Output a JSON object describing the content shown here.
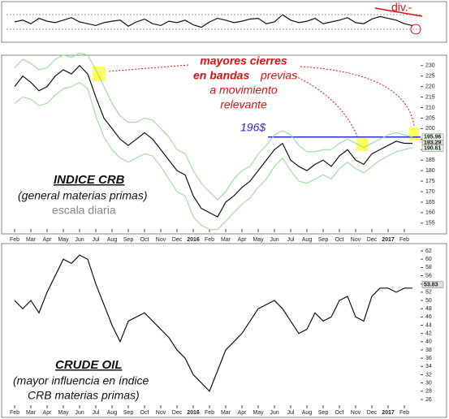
{
  "chart_data": [
    {
      "type": "line",
      "ylim": [
        0,
        100
      ],
      "x": [
        0,
        0.5,
        1,
        1.5,
        2,
        2.5,
        3,
        3.5,
        4,
        4.5,
        5,
        5.5,
        6,
        6.5,
        7,
        7.5,
        8,
        8.5,
        9,
        9.5,
        10,
        10.5,
        11,
        11.5,
        12,
        12.5,
        13,
        13.5,
        14,
        14.5,
        15,
        15.5,
        16,
        16.5,
        17,
        17.5,
        18,
        18.5,
        19,
        19.5,
        20,
        20.5,
        21,
        21.5,
        22,
        22.5,
        23,
        23.5,
        24,
        24.5
      ],
      "xlim": [
        -0.5,
        25
      ],
      "series": [
        {
          "color": "#111111",
          "values": [
            50,
            55,
            45,
            60,
            52,
            48,
            55,
            62,
            50,
            45,
            40,
            48,
            52,
            55,
            38,
            50,
            58,
            45,
            40,
            52,
            48,
            55,
            42,
            35,
            50,
            60,
            55,
            48,
            52,
            58,
            60,
            45,
            50,
            70,
            55,
            48,
            52,
            60,
            45,
            50,
            55,
            62,
            48,
            45,
            58,
            65,
            60,
            55,
            45,
            40
          ]
        }
      ],
      "annotations": [
        "div.-"
      ]
    },
    {
      "type": "line",
      "title": "INDICE CRB",
      "subtitle": "(general materias primas)",
      "note": "escala diaria",
      "annotations": [
        "mayores cierres",
        "en bandas",
        "previas",
        "a movimiento",
        "relevante"
      ],
      "level": 196,
      "level_label": "196$",
      "x": [
        0,
        0.5,
        1,
        1.5,
        2,
        2.5,
        3,
        3.5,
        4,
        4.5,
        5,
        5.5,
        6,
        6.5,
        7,
        7.5,
        8,
        8.5,
        9,
        9.5,
        10,
        10.5,
        11,
        11.5,
        12,
        12.5,
        13,
        13.5,
        14,
        14.5,
        15,
        15.5,
        16,
        16.5,
        17,
        17.5,
        18,
        18.5,
        19,
        19.5,
        20,
        20.5,
        21,
        21.5,
        22,
        22.5,
        23,
        23.5,
        24,
        24.5
      ],
      "xlim": [
        -0.5,
        25
      ],
      "xticks": [
        {
          "value": 0,
          "label": "Feb"
        },
        {
          "value": 1,
          "label": "Mar"
        },
        {
          "value": 2,
          "label": "Apr"
        },
        {
          "value": 3,
          "label": "May"
        },
        {
          "value": 4,
          "label": "Jun"
        },
        {
          "value": 5,
          "label": "Jul"
        },
        {
          "value": 6,
          "label": "Aug"
        },
        {
          "value": 7,
          "label": "Sep"
        },
        {
          "value": 8,
          "label": "Oct"
        },
        {
          "value": 9,
          "label": "Nov"
        },
        {
          "value": 10,
          "label": "Dec"
        },
        {
          "value": 11,
          "label": "2016"
        },
        {
          "value": 12,
          "label": "Feb"
        },
        {
          "value": 13,
          "label": "Mar"
        },
        {
          "value": 14,
          "label": "Apr"
        },
        {
          "value": 15,
          "label": "May"
        },
        {
          "value": 16,
          "label": "Jun"
        },
        {
          "value": 17,
          "label": "Jul"
        },
        {
          "value": 18,
          "label": "Aug"
        },
        {
          "value": 19,
          "label": "Sep"
        },
        {
          "value": 20,
          "label": "Oct"
        },
        {
          "value": 21,
          "label": "Nov"
        },
        {
          "value": 22,
          "label": "Dec"
        },
        {
          "value": 23,
          "label": "2017"
        },
        {
          "value": 24,
          "label": "Feb"
        }
      ],
      "ylim": [
        153,
        233
      ],
      "yticks": [
        155,
        160,
        165,
        170,
        175,
        180,
        185,
        190,
        195,
        200,
        205,
        210,
        215,
        220,
        225,
        230
      ],
      "series": [
        {
          "color": "#111111",
          "last": 193.29,
          "values": [
            220,
            225,
            222,
            218,
            220,
            225,
            228,
            226,
            230,
            226,
            215,
            205,
            200,
            195,
            192,
            195,
            198,
            195,
            190,
            185,
            180,
            178,
            168,
            162,
            160,
            158,
            165,
            168,
            172,
            175,
            180,
            185,
            190,
            193,
            185,
            182,
            180,
            183,
            185,
            182,
            187,
            190,
            185,
            183,
            188,
            190,
            192,
            194,
            193,
            193
          ]
        },
        {
          "color": "#8fdc8f",
          "last": 195.96,
          "values": [
            229,
            233,
            231,
            228,
            229,
            233,
            235,
            234,
            236,
            235,
            228,
            220,
            212,
            206,
            203,
            203,
            205,
            204,
            200,
            196,
            190,
            188,
            180,
            174,
            170,
            166,
            170,
            176,
            180,
            182,
            188,
            192,
            197,
            199,
            197,
            192,
            189,
            189,
            190,
            190,
            193,
            195,
            193,
            191,
            193,
            195,
            197,
            198,
            197,
            196
          ]
        },
        {
          "color": "#8fdc8f",
          "last": 190.61,
          "values": [
            212,
            215,
            214,
            211,
            212,
            216,
            219,
            220,
            222,
            219,
            206,
            196,
            190,
            186,
            184,
            186,
            188,
            187,
            182,
            176,
            170,
            168,
            158,
            154,
            152,
            152,
            156,
            160,
            164,
            167,
            172,
            176,
            182,
            186,
            180,
            175,
            174,
            176,
            178,
            176,
            181,
            184,
            181,
            179,
            182,
            185,
            187,
            189,
            190,
            191
          ]
        }
      ]
    },
    {
      "type": "line",
      "title": "CRUDE OIL",
      "subtitle": "(mayor influencia en índice",
      "subtitle2": "CRB  materias primas)",
      "x": [
        0,
        0.5,
        1,
        1.5,
        2,
        2.5,
        3,
        3.5,
        4,
        4.5,
        5,
        5.5,
        6,
        6.5,
        7,
        7.5,
        8,
        8.5,
        9,
        9.5,
        10,
        10.5,
        11,
        11.5,
        12,
        12.5,
        13,
        13.5,
        14,
        14.5,
        15,
        15.5,
        16,
        16.5,
        17,
        17.5,
        18,
        18.5,
        19,
        19.5,
        20,
        20.5,
        21,
        21.5,
        22,
        22.5,
        23,
        23.5,
        24,
        24.5
      ],
      "xlim": [
        -0.5,
        25
      ],
      "xticks": [
        {
          "value": 0,
          "label": "Feb"
        },
        {
          "value": 1,
          "label": "Mar"
        },
        {
          "value": 2,
          "label": "Apr"
        },
        {
          "value": 3,
          "label": "May"
        },
        {
          "value": 4,
          "label": "Jun"
        },
        {
          "value": 5,
          "label": "Jul"
        },
        {
          "value": 6,
          "label": "Aug"
        },
        {
          "value": 7,
          "label": "Sep"
        },
        {
          "value": 8,
          "label": "Oct"
        },
        {
          "value": 9,
          "label": "Nov"
        },
        {
          "value": 10,
          "label": "Dec"
        },
        {
          "value": 11,
          "label": "2016"
        },
        {
          "value": 12,
          "label": "Feb"
        },
        {
          "value": 13,
          "label": "Mar"
        },
        {
          "value": 14,
          "label": "Apr"
        },
        {
          "value": 15,
          "label": "May"
        },
        {
          "value": 16,
          "label": "Jun"
        },
        {
          "value": 17,
          "label": "Jul"
        },
        {
          "value": 18,
          "label": "Aug"
        },
        {
          "value": 19,
          "label": "Sep"
        },
        {
          "value": 20,
          "label": "Oct"
        },
        {
          "value": 21,
          "label": "Nov"
        },
        {
          "value": 22,
          "label": "Dec"
        },
        {
          "value": 23,
          "label": "2017"
        },
        {
          "value": 24,
          "label": "Feb"
        }
      ],
      "ylim": [
        25,
        63
      ],
      "yticks": [
        26,
        28,
        30,
        32,
        34,
        36,
        38,
        40,
        42,
        44,
        46,
        48,
        50,
        52,
        54,
        56,
        58,
        60,
        62
      ],
      "series": [
        {
          "color": "#111111",
          "last": 53.83,
          "values": [
            50,
            48,
            50,
            47,
            52,
            56,
            60,
            59,
            61,
            60,
            54,
            49,
            44,
            40,
            45,
            46,
            47,
            45,
            43,
            41,
            38,
            36,
            32,
            30,
            28,
            33,
            38,
            40,
            42,
            45,
            48,
            49,
            50,
            48,
            45,
            42,
            43,
            47,
            45,
            46,
            50,
            51,
            46,
            45,
            51,
            53,
            53,
            52,
            53,
            53
          ]
        }
      ]
    }
  ]
}
